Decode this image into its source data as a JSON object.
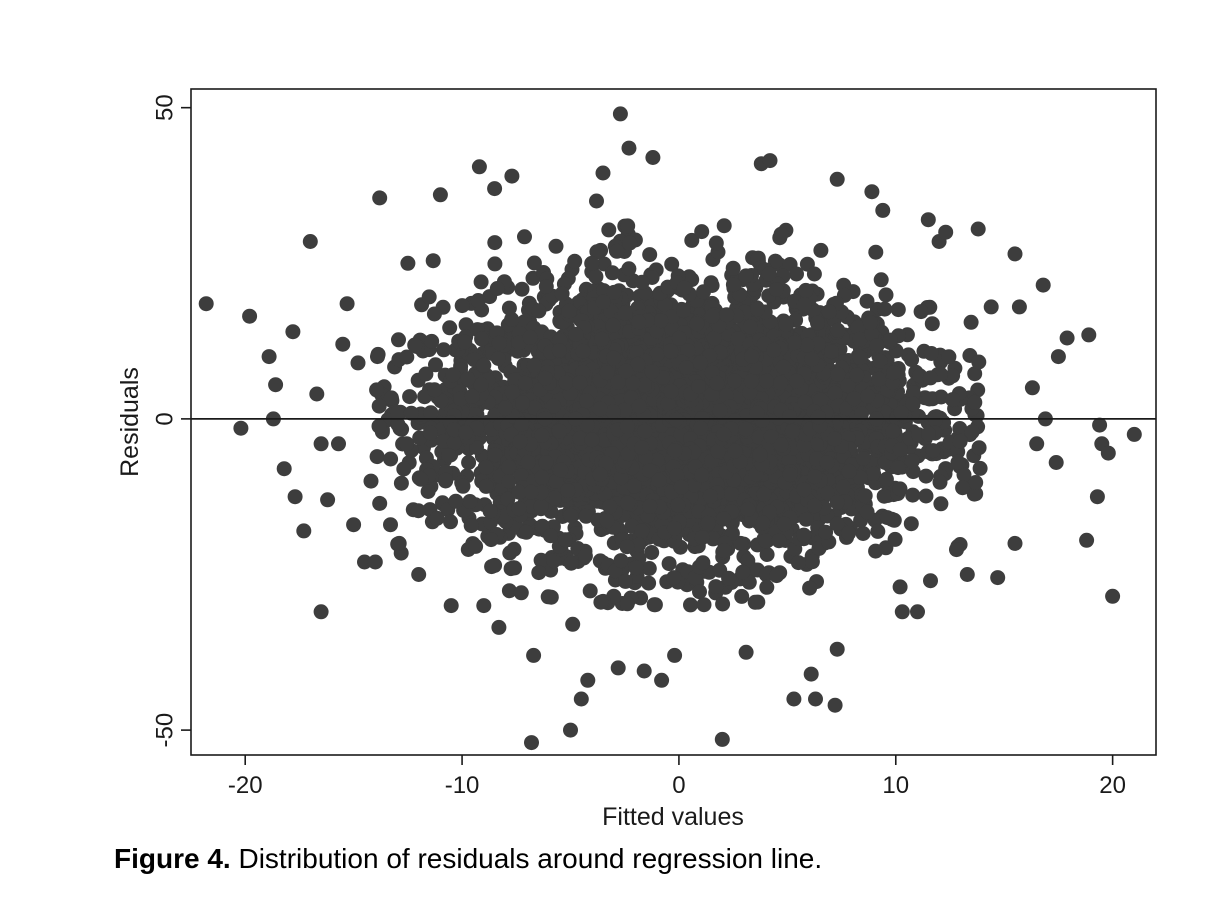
{
  "caption": {
    "label": "Figure 4.",
    "text": " Distribution of residuals around regression line."
  },
  "chart_data": {
    "type": "scatter",
    "xlabel": "Fitted values",
    "ylabel": "Residuals",
    "xlim": [
      -22.5,
      22
    ],
    "ylim": [
      -54,
      53
    ],
    "xticks": [
      -20,
      -10,
      0,
      10,
      20
    ],
    "yticks": [
      -50,
      0,
      50
    ],
    "reference_line": {
      "y": 0
    },
    "grid": false,
    "marker_color": "#3d3d3d",
    "core": {
      "description": "dense elliptical cloud of thousands of points",
      "center": [
        0,
        0
      ],
      "x_half_width": 11,
      "y_extent": [
        -23,
        24
      ]
    },
    "outliers": [
      {
        "x": -21.8,
        "y": 18.5
      },
      {
        "x": -19.8,
        "y": 16.5
      },
      {
        "x": -20.2,
        "y": -1.5
      },
      {
        "x": -18.9,
        "y": 10
      },
      {
        "x": -18.6,
        "y": 5.5
      },
      {
        "x": -18.7,
        "y": 0
      },
      {
        "x": -18.2,
        "y": -8
      },
      {
        "x": -17.7,
        "y": -12.5
      },
      {
        "x": -17.3,
        "y": -18
      },
      {
        "x": -17.0,
        "y": 28.5
      },
      {
        "x": -16.5,
        "y": -31
      },
      {
        "x": -17.8,
        "y": 14
      },
      {
        "x": -16.2,
        "y": -13
      },
      {
        "x": -15.0,
        "y": -17
      },
      {
        "x": -14.5,
        "y": -23
      },
      {
        "x": -14.0,
        "y": -23
      },
      {
        "x": -13.8,
        "y": 35.5
      },
      {
        "x": -15.3,
        "y": 18.5
      },
      {
        "x": -12.5,
        "y": 25
      },
      {
        "x": -12.0,
        "y": -25
      },
      {
        "x": -11.0,
        "y": 36
      },
      {
        "x": -10.5,
        "y": -30
      },
      {
        "x": -9.2,
        "y": 40.5
      },
      {
        "x": -8.5,
        "y": 37
      },
      {
        "x": -7.7,
        "y": 39
      },
      {
        "x": -9.0,
        "y": -30
      },
      {
        "x": -8.3,
        "y": -33.5
      },
      {
        "x": -6.7,
        "y": -38
      },
      {
        "x": -6.8,
        "y": -52
      },
      {
        "x": -5.0,
        "y": -50
      },
      {
        "x": -4.5,
        "y": -45
      },
      {
        "x": -4.2,
        "y": -42
      },
      {
        "x": -4.9,
        "y": -33
      },
      {
        "x": -2.7,
        "y": 49
      },
      {
        "x": -2.3,
        "y": 43.5
      },
      {
        "x": -1.2,
        "y": 42
      },
      {
        "x": -2.8,
        "y": -40
      },
      {
        "x": -1.6,
        "y": -40.5
      },
      {
        "x": -0.8,
        "y": -42
      },
      {
        "x": -0.2,
        "y": -38
      },
      {
        "x": -3.5,
        "y": 39.5
      },
      {
        "x": -3.8,
        "y": 35
      },
      {
        "x": 2.0,
        "y": -51.5
      },
      {
        "x": 3.8,
        "y": 41
      },
      {
        "x": 4.2,
        "y": 41.5
      },
      {
        "x": 3.1,
        "y": -37.5
      },
      {
        "x": 5.3,
        "y": -45
      },
      {
        "x": 6.3,
        "y": -45
      },
      {
        "x": 7.2,
        "y": -46
      },
      {
        "x": 6.1,
        "y": -41
      },
      {
        "x": 7.3,
        "y": -37
      },
      {
        "x": 7.3,
        "y": 38.5
      },
      {
        "x": 8.9,
        "y": 36.5
      },
      {
        "x": 9.4,
        "y": 33.5
      },
      {
        "x": 11.5,
        "y": 32
      },
      {
        "x": 12.0,
        "y": 28.5
      },
      {
        "x": 12.3,
        "y": 30
      },
      {
        "x": 13.8,
        "y": 30.5
      },
      {
        "x": 15.5,
        "y": 26.5
      },
      {
        "x": 16.8,
        "y": 21.5
      },
      {
        "x": 17.9,
        "y": 13
      },
      {
        "x": 18.9,
        "y": 13.5
      },
      {
        "x": 17.5,
        "y": 10
      },
      {
        "x": 19.4,
        "y": -1
      },
      {
        "x": 19.5,
        "y": -4
      },
      {
        "x": 19.8,
        "y": -5.5
      },
      {
        "x": 21.0,
        "y": -2.5
      },
      {
        "x": 19.3,
        "y": -12.5
      },
      {
        "x": 18.8,
        "y": -19.5
      },
      {
        "x": 20.0,
        "y": -28.5
      },
      {
        "x": 17.4,
        "y": -7
      },
      {
        "x": 16.5,
        "y": -4
      },
      {
        "x": 15.5,
        "y": -20
      },
      {
        "x": 14.7,
        "y": -25.5
      },
      {
        "x": 13.3,
        "y": -25
      },
      {
        "x": 12.8,
        "y": -21
      },
      {
        "x": 11.0,
        "y": -31
      },
      {
        "x": 10.2,
        "y": -27
      },
      {
        "x": 10.3,
        "y": -31
      },
      {
        "x": 11.6,
        "y": -26
      },
      {
        "x": 15.7,
        "y": 18
      },
      {
        "x": 14.4,
        "y": 18
      },
      {
        "x": 16.9,
        "y": 0
      },
      {
        "x": 16.3,
        "y": 5
      },
      {
        "x": -16.7,
        "y": 4
      },
      {
        "x": -16.5,
        "y": -4
      },
      {
        "x": -15.7,
        "y": -4
      },
      {
        "x": -15.5,
        "y": 12
      },
      {
        "x": -14.8,
        "y": 9
      },
      {
        "x": -13.9,
        "y": 10
      },
      {
        "x": -14.2,
        "y": -10
      },
      {
        "x": -13.3,
        "y": -17
      },
      {
        "x": -12.9,
        "y": -20
      }
    ]
  }
}
